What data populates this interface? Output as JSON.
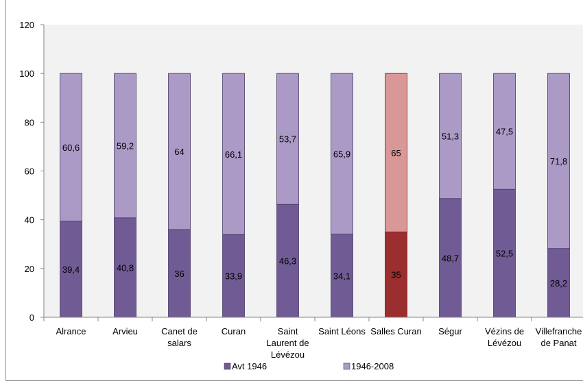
{
  "chart_data": {
    "type": "bar",
    "stacked": true,
    "title": "",
    "xlabel": "",
    "ylabel": "",
    "ylim": [
      0,
      120
    ],
    "yticks": [
      0,
      20,
      40,
      60,
      80,
      100,
      120
    ],
    "grid": false,
    "legend_position": "bottom",
    "plot_background": "#f2f2f2",
    "highlight_index": 6,
    "categories": [
      "Alrance",
      "Arvieu",
      "Canet de salars",
      "Curan",
      "Saint Laurent de Lévézou",
      "Saint Léons",
      "Salles Curan",
      "Ségur",
      "Vézins de Lévézou",
      "Villefranche de Panat"
    ],
    "category_lines": [
      [
        "Alrance"
      ],
      [
        "Arvieu"
      ],
      [
        "Canet de",
        "salars"
      ],
      [
        "Curan"
      ],
      [
        "Saint",
        "Laurent de",
        "Lévézou"
      ],
      [
        "Saint Léons"
      ],
      [
        "Salles Curan"
      ],
      [
        "Ségur"
      ],
      [
        "Vézins de",
        "Lévézou"
      ],
      [
        "Villefranche",
        "de Panat"
      ]
    ],
    "series": [
      {
        "name": "Avt 1946",
        "color": "#715b95",
        "highlight_color": "#9b2f2f",
        "values": [
          39.4,
          40.8,
          36,
          33.9,
          46.3,
          34.1,
          35,
          48.7,
          52.5,
          28.2
        ],
        "labels": [
          "39,4",
          "40,8",
          "36",
          "33,9",
          "46,3",
          "34,1",
          "35",
          "48,7",
          "52,5",
          "28,2"
        ]
      },
      {
        "name": "1946-2008",
        "color": "#ab9ac6",
        "highlight_color": "#da9797",
        "values": [
          60.6,
          59.2,
          64,
          66.1,
          53.7,
          65.9,
          65,
          51.3,
          47.5,
          71.8
        ],
        "labels": [
          "60,6",
          "59,2",
          "64",
          "66,1",
          "53,7",
          "65,9",
          "65",
          "51,3",
          "47,5",
          "71,8"
        ]
      }
    ]
  }
}
